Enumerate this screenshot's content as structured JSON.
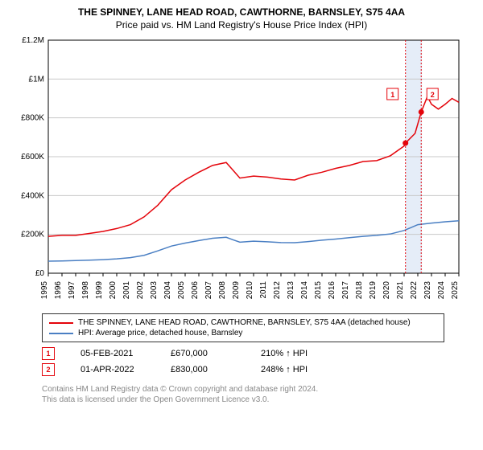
{
  "title": "THE SPINNEY, LANE HEAD ROAD, CAWTHORNE, BARNSLEY, S75 4AA",
  "subtitle": "Price paid vs. HM Land Registry's House Price Index (HPI)",
  "chart": {
    "type": "line",
    "background_color": "#ffffff",
    "grid_color": "#c8c8c8",
    "axis_color": "#000000",
    "ylim": [
      0,
      1200000
    ],
    "ytick_step": 200000,
    "ytick_labels": [
      "£0",
      "£200K",
      "£400K",
      "£600K",
      "£800K",
      "£1M",
      "£1.2M"
    ],
    "x_years": [
      1995,
      1996,
      1997,
      1998,
      1999,
      2000,
      2001,
      2002,
      2003,
      2004,
      2005,
      2006,
      2007,
      2008,
      2009,
      2010,
      2011,
      2012,
      2013,
      2014,
      2015,
      2016,
      2017,
      2018,
      2019,
      2020,
      2021,
      2022,
      2023,
      2024,
      2025
    ],
    "marker_band": {
      "start_year": 2021.1,
      "end_year": 2022.3,
      "fill": "#e5edf8"
    },
    "series": [
      {
        "name": "THE SPINNEY, LANE HEAD ROAD, CAWTHORNE, BARNSLEY, S75 4AA (detached house)",
        "color": "#e4040b",
        "line_width": 1.5,
        "data": [
          [
            1995,
            190000
          ],
          [
            1996,
            195000
          ],
          [
            1997,
            195000
          ],
          [
            1998,
            205000
          ],
          [
            1999,
            215000
          ],
          [
            2000,
            230000
          ],
          [
            2001,
            250000
          ],
          [
            2002,
            290000
          ],
          [
            2003,
            350000
          ],
          [
            2004,
            430000
          ],
          [
            2005,
            480000
          ],
          [
            2006,
            520000
          ],
          [
            2007,
            555000
          ],
          [
            2008,
            570000
          ],
          [
            2008.5,
            530000
          ],
          [
            2009,
            490000
          ],
          [
            2010,
            500000
          ],
          [
            2011,
            495000
          ],
          [
            2012,
            485000
          ],
          [
            2013,
            480000
          ],
          [
            2014,
            505000
          ],
          [
            2015,
            520000
          ],
          [
            2016,
            540000
          ],
          [
            2017,
            555000
          ],
          [
            2018,
            575000
          ],
          [
            2019,
            580000
          ],
          [
            2020,
            605000
          ],
          [
            2021,
            655000
          ],
          [
            2021.1,
            670000
          ],
          [
            2021.8,
            720000
          ],
          [
            2022.25,
            830000
          ],
          [
            2022.7,
            910000
          ],
          [
            2023,
            870000
          ],
          [
            2023.5,
            845000
          ],
          [
            2024,
            870000
          ],
          [
            2024.5,
            900000
          ],
          [
            2025,
            880000
          ]
        ]
      },
      {
        "name": "HPI: Average price, detached house, Barnsley",
        "color": "#4a7fc3",
        "line_width": 1.5,
        "data": [
          [
            1995,
            62000
          ],
          [
            1996,
            63000
          ],
          [
            1997,
            65000
          ],
          [
            1998,
            67000
          ],
          [
            1999,
            70000
          ],
          [
            2000,
            74000
          ],
          [
            2001,
            80000
          ],
          [
            2002,
            92000
          ],
          [
            2003,
            115000
          ],
          [
            2004,
            140000
          ],
          [
            2005,
            155000
          ],
          [
            2006,
            168000
          ],
          [
            2007,
            180000
          ],
          [
            2008,
            185000
          ],
          [
            2008.5,
            172000
          ],
          [
            2009,
            160000
          ],
          [
            2010,
            165000
          ],
          [
            2011,
            162000
          ],
          [
            2012,
            158000
          ],
          [
            2013,
            157000
          ],
          [
            2014,
            163000
          ],
          [
            2015,
            170000
          ],
          [
            2016,
            176000
          ],
          [
            2017,
            183000
          ],
          [
            2018,
            190000
          ],
          [
            2019,
            195000
          ],
          [
            2020,
            202000
          ],
          [
            2021,
            220000
          ],
          [
            2022,
            250000
          ],
          [
            2023,
            258000
          ],
          [
            2024,
            265000
          ],
          [
            2025,
            270000
          ]
        ]
      }
    ],
    "markers": [
      {
        "id": "1",
        "year": 2021.1,
        "value": 670000,
        "color": "#e4040b"
      },
      {
        "id": "2",
        "year": 2022.25,
        "value": 830000,
        "color": "#e4040b"
      }
    ]
  },
  "legend": {
    "items": [
      {
        "color": "#e4040b",
        "label": "THE SPINNEY, LANE HEAD ROAD, CAWTHORNE, BARNSLEY, S75 4AA (detached house)"
      },
      {
        "color": "#4a7fc3",
        "label": "HPI: Average price, detached house, Barnsley"
      }
    ]
  },
  "marker_table": {
    "rows": [
      {
        "id": "1",
        "color": "#e4040b",
        "date": "05-FEB-2021",
        "price": "£670,000",
        "index": "210% ↑ HPI"
      },
      {
        "id": "2",
        "color": "#e4040b",
        "date": "01-APR-2022",
        "price": "£830,000",
        "index": "248% ↑ HPI"
      }
    ]
  },
  "footer": {
    "line1": "Contains HM Land Registry data © Crown copyright and database right 2024.",
    "line2": "This data is licensed under the Open Government Licence v3.0."
  }
}
